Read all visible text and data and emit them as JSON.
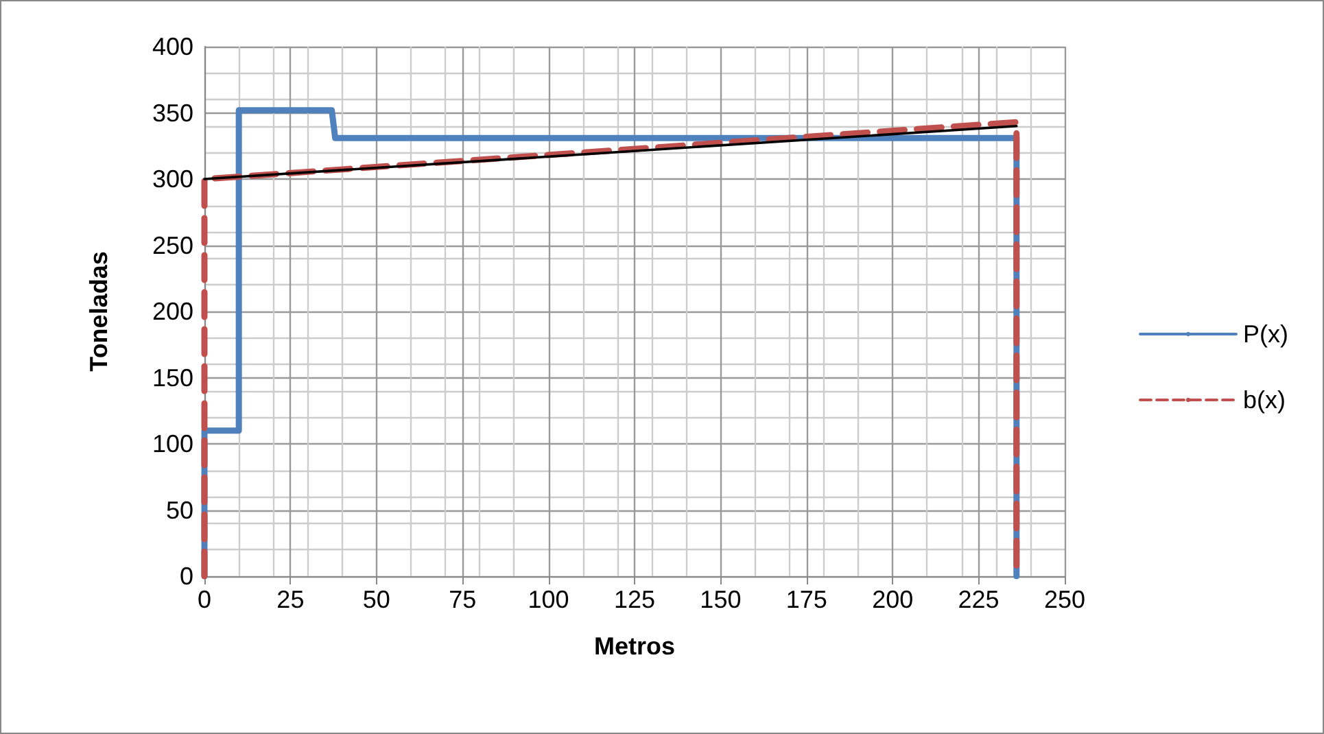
{
  "chart_data": {
    "type": "line",
    "xlabel": "Metros",
    "ylabel": "Toneladas",
    "xlim": [
      0,
      250
    ],
    "xticks": [
      0,
      25,
      50,
      75,
      100,
      125,
      150,
      175,
      200,
      225,
      250
    ],
    "ylim": [
      0,
      400
    ],
    "yticks": [
      0,
      50,
      100,
      150,
      200,
      250,
      300,
      350,
      400
    ],
    "grid": true,
    "legend": "right",
    "marker": "none",
    "series": [
      {
        "name": "P(x)",
        "color": "#4f81bd",
        "line_style": "solid",
        "x": [
          0,
          0,
          10,
          10,
          37,
          38,
          236,
          236
        ],
        "values": [
          0,
          110,
          110,
          352,
          352,
          331,
          331,
          0
        ]
      },
      {
        "name": "b(x)",
        "color": "#c0504d",
        "line_style": "dashed",
        "x": [
          0,
          0,
          236,
          236
        ],
        "values": [
          0,
          300,
          343,
          0
        ]
      },
      {
        "color": "#000000",
        "line_style": "solid",
        "x": [
          0,
          236
        ],
        "values": [
          300,
          340
        ]
      }
    ]
  }
}
